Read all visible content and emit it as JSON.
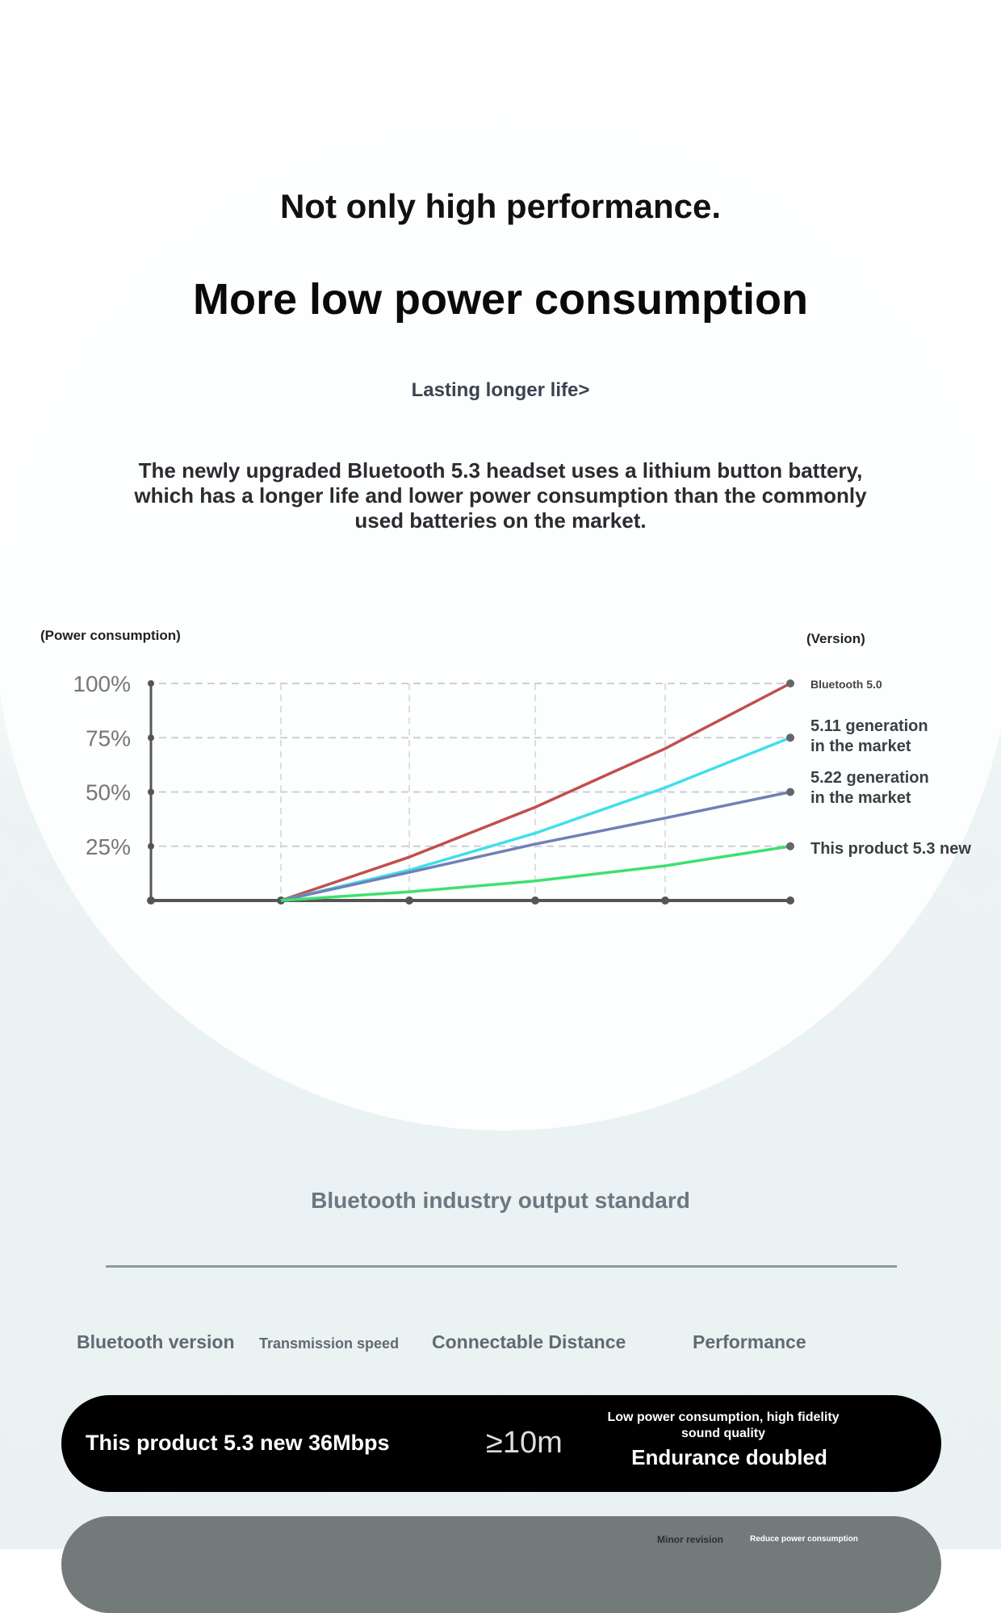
{
  "header": {
    "title": "Not only high performance.",
    "subtitle": "More low power consumption",
    "link": "Lasting longer life>",
    "description": "The newly upgraded Bluetooth 5.3 headset uses a lithium button battery, which has a longer life and lower power consumption than the commonly used batteries on the market."
  },
  "chart_data": {
    "type": "line",
    "ylabel": "(Power consumption)",
    "xlabel": "(Version)",
    "yticks": [
      "100%",
      "75%",
      "50%",
      "25%"
    ],
    "ylim": [
      0,
      100
    ],
    "x": [
      0,
      1,
      2,
      3,
      4,
      5
    ],
    "grid": true,
    "series": [
      {
        "name": "Bluetooth 5.0",
        "color": "#c0504d",
        "values": [
          null,
          0,
          20,
          43,
          70,
          100
        ]
      },
      {
        "name": "5.11 generation in the market",
        "color": "#3fe0ea",
        "values": [
          null,
          0,
          14,
          31,
          52,
          75
        ]
      },
      {
        "name": "5.22 generation in the market",
        "color": "#7080b8",
        "values": [
          null,
          0,
          13,
          26,
          38,
          50
        ]
      },
      {
        "name": "This product 5.3 new",
        "color": "#3ee070",
        "values": [
          null,
          0,
          4,
          9,
          16,
          25
        ]
      }
    ]
  },
  "standard": {
    "title": "Bluetooth industry output standard",
    "headers": [
      "Bluetooth version",
      "Transmission speed",
      "Connectable Distance",
      "Performance"
    ],
    "row1": {
      "version_speed": "This product 5.3 new 36Mbps",
      "distance": "≥10m",
      "perf_small": "Low power consumption, high fidelity sound quality",
      "perf_big": "Endurance doubled"
    },
    "row2": {
      "col1": "Minor revision",
      "col2": "Reduce power consumption"
    }
  }
}
